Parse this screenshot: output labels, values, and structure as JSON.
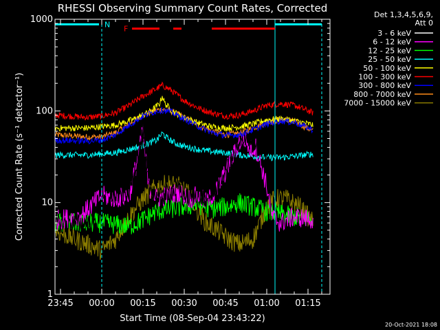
{
  "chart_data": {
    "type": "line",
    "title": "RHESSI Observing Summary Count Rates, Corrected",
    "xlabel": "Start Time (08-Sep-04 23:43:22)",
    "ylabel": "Corrected Count Rate (s⁻¹ detector⁻¹)",
    "yscale": "log",
    "ylim": [
      1,
      1000
    ],
    "xlim_minutes": [
      -17,
      83
    ],
    "x_unit": "minutes relative to 09-Sep-04 00:00",
    "x_ticks": [
      {
        "t": -15,
        "label": "23:45"
      },
      {
        "t": 0,
        "label": "00:00"
      },
      {
        "t": 15,
        "label": "00:15"
      },
      {
        "t": 30,
        "label": "00:30"
      },
      {
        "t": 45,
        "label": "00:45"
      },
      {
        "t": 60,
        "label": "01:00"
      },
      {
        "t": 75,
        "label": "01:15"
      }
    ],
    "y_ticks": [
      {
        "v": 1,
        "label": "1"
      },
      {
        "v": 10,
        "label": "10"
      },
      {
        "v": 100,
        "label": "100"
      },
      {
        "v": 1000,
        "label": "1000"
      }
    ],
    "legend_header": [
      "Det 1,3,4,5,6,9,",
      "Att 0"
    ],
    "legend_position": "top-right",
    "series": [
      {
        "name": "3 - 6 keV",
        "color": "#000000",
        "points": [
          [
            -17,
            6
          ],
          [
            -5,
            6
          ],
          [
            -1,
            6
          ],
          [
            0,
            13
          ],
          [
            5,
            12
          ],
          [
            10,
            13
          ],
          [
            13,
            30
          ],
          [
            15,
            55
          ],
          [
            17,
            15
          ],
          [
            20,
            11
          ],
          [
            25,
            13
          ],
          [
            28,
            14
          ],
          [
            32,
            11
          ],
          [
            35,
            13
          ],
          [
            38,
            10
          ],
          [
            42,
            15
          ],
          [
            46,
            25
          ],
          [
            50,
            40
          ],
          [
            52,
            55
          ],
          [
            54,
            45
          ],
          [
            57,
            42
          ],
          [
            59,
            35
          ],
          [
            61,
            25
          ],
          [
            62,
            1
          ],
          [
            77,
            1
          ]
        ]
      },
      {
        "name": "6 - 12 keV",
        "color": "#ff00ff",
        "points": [
          [
            -17,
            6.5
          ],
          [
            -8,
            7
          ],
          [
            0,
            12
          ],
          [
            5,
            11
          ],
          [
            10,
            12
          ],
          [
            13,
            30
          ],
          [
            15,
            60
          ],
          [
            17,
            15
          ],
          [
            20,
            11
          ],
          [
            24,
            12
          ],
          [
            28,
            13
          ],
          [
            32,
            11
          ],
          [
            35,
            12
          ],
          [
            38,
            10
          ],
          [
            42,
            14
          ],
          [
            46,
            25
          ],
          [
            50,
            45
          ],
          [
            52,
            50
          ],
          [
            54,
            38
          ],
          [
            56,
            40
          ],
          [
            58,
            25
          ],
          [
            60,
            15
          ],
          [
            62,
            7
          ],
          [
            65,
            6
          ],
          [
            70,
            7
          ],
          [
            77,
            6.5
          ]
        ]
      },
      {
        "name": "12 - 25 keV",
        "color": "#00ff00",
        "points": [
          [
            -17,
            6
          ],
          [
            -8,
            6
          ],
          [
            0,
            6
          ],
          [
            10,
            5.5
          ],
          [
            15,
            6.5
          ],
          [
            20,
            8
          ],
          [
            25,
            8.5
          ],
          [
            30,
            9
          ],
          [
            35,
            9.5
          ],
          [
            40,
            8.5
          ],
          [
            45,
            9
          ],
          [
            50,
            10
          ],
          [
            55,
            9
          ],
          [
            60,
            8
          ],
          [
            65,
            7.5
          ],
          [
            70,
            7
          ],
          [
            77,
            6.5
          ]
        ]
      },
      {
        "name": "25 - 50 keV",
        "color": "#00ffff",
        "points": [
          [
            -17,
            33
          ],
          [
            -5,
            33
          ],
          [
            5,
            35
          ],
          [
            10,
            38
          ],
          [
            15,
            42
          ],
          [
            20,
            48
          ],
          [
            22,
            57
          ],
          [
            24,
            50
          ],
          [
            27,
            44
          ],
          [
            30,
            41
          ],
          [
            35,
            38
          ],
          [
            40,
            36
          ],
          [
            45,
            35
          ],
          [
            50,
            33
          ],
          [
            55,
            32
          ],
          [
            60,
            31
          ],
          [
            65,
            31
          ],
          [
            70,
            32
          ],
          [
            77,
            34
          ]
        ]
      },
      {
        "name": "50 - 100 keV",
        "color": "#ffff00",
        "points": [
          [
            -17,
            65
          ],
          [
            -5,
            65
          ],
          [
            5,
            70
          ],
          [
            12,
            82
          ],
          [
            18,
            100
          ],
          [
            21,
            120
          ],
          [
            22,
            145
          ],
          [
            23,
            120
          ],
          [
            26,
            98
          ],
          [
            30,
            85
          ],
          [
            35,
            74
          ],
          [
            40,
            67
          ],
          [
            45,
            65
          ],
          [
            50,
            67
          ],
          [
            55,
            72
          ],
          [
            60,
            80
          ],
          [
            65,
            82
          ],
          [
            70,
            78
          ],
          [
            77,
            70
          ]
        ]
      },
      {
        "name": "100 - 300 keV",
        "color": "#ff0000",
        "points": [
          [
            -17,
            90
          ],
          [
            -5,
            85
          ],
          [
            0,
            88
          ],
          [
            5,
            95
          ],
          [
            10,
            115
          ],
          [
            15,
            145
          ],
          [
            20,
            175
          ],
          [
            22,
            190
          ],
          [
            25,
            170
          ],
          [
            30,
            130
          ],
          [
            35,
            108
          ],
          [
            40,
            95
          ],
          [
            45,
            88
          ],
          [
            50,
            90
          ],
          [
            55,
            100
          ],
          [
            60,
            115
          ],
          [
            65,
            120
          ],
          [
            70,
            115
          ],
          [
            77,
            95
          ]
        ]
      },
      {
        "name": "300 - 800 keV",
        "color": "#0000ff",
        "points": [
          [
            -17,
            48
          ],
          [
            -5,
            47
          ],
          [
            0,
            48
          ],
          [
            5,
            55
          ],
          [
            10,
            70
          ],
          [
            15,
            88
          ],
          [
            20,
            100
          ],
          [
            22,
            102
          ],
          [
            25,
            98
          ],
          [
            30,
            82
          ],
          [
            35,
            68
          ],
          [
            40,
            58
          ],
          [
            45,
            54
          ],
          [
            50,
            55
          ],
          [
            55,
            62
          ],
          [
            60,
            72
          ],
          [
            65,
            78
          ],
          [
            70,
            75
          ],
          [
            77,
            62
          ]
        ]
      },
      {
        "name": "800 - 7000 keV",
        "color": "#ff8c1a",
        "points": [
          [
            -17,
            55
          ],
          [
            -5,
            52
          ],
          [
            0,
            52
          ],
          [
            5,
            58
          ],
          [
            10,
            72
          ],
          [
            15,
            90
          ],
          [
            20,
            102
          ],
          [
            22,
            104
          ],
          [
            25,
            100
          ],
          [
            30,
            85
          ],
          [
            35,
            70
          ],
          [
            40,
            60
          ],
          [
            45,
            55
          ],
          [
            50,
            57
          ],
          [
            55,
            65
          ],
          [
            60,
            75
          ],
          [
            65,
            80
          ],
          [
            70,
            77
          ],
          [
            77,
            60
          ]
        ]
      },
      {
        "name": "7000 - 15000 keV",
        "color": "#8b7d00",
        "points": [
          [
            -17,
            5
          ],
          [
            -10,
            4
          ],
          [
            -5,
            3.5
          ],
          [
            0,
            3
          ],
          [
            5,
            4
          ],
          [
            10,
            7
          ],
          [
            15,
            11
          ],
          [
            20,
            15
          ],
          [
            25,
            16
          ],
          [
            28,
            15
          ],
          [
            32,
            12
          ],
          [
            35,
            8
          ],
          [
            38,
            6
          ],
          [
            42,
            5
          ],
          [
            46,
            4
          ],
          [
            50,
            3.5
          ],
          [
            55,
            4
          ],
          [
            60,
            9
          ],
          [
            63,
            11
          ],
          [
            67,
            11
          ],
          [
            72,
            9
          ],
          [
            77,
            6
          ]
        ]
      }
    ],
    "annotations": [
      {
        "type": "vline",
        "t": -17,
        "color": "#00ffff",
        "style": "solid"
      },
      {
        "type": "vline",
        "t": 0,
        "color": "#00ffff",
        "style": "dashed"
      },
      {
        "type": "vline",
        "t": 63,
        "color": "#00ffff",
        "style": "solid"
      },
      {
        "type": "vline",
        "t": 80,
        "color": "#00ffff",
        "style": "dashed"
      },
      {
        "type": "bar",
        "t0": -17,
        "t1": -1,
        "color": "#00ffff",
        "level": 880
      },
      {
        "type": "bar",
        "t0": 63,
        "t1": 80,
        "color": "#00ffff",
        "level": 880
      },
      {
        "type": "label",
        "text": "N",
        "t": 1,
        "color": "#00ffff",
        "level": 880
      },
      {
        "type": "label",
        "text": "F",
        "t": 8,
        "color": "#ff0000",
        "level": 790
      },
      {
        "type": "bar",
        "t0": 11,
        "t1": 21,
        "color": "#ff0000",
        "level": 790
      },
      {
        "type": "bar",
        "t0": 26,
        "t1": 29,
        "color": "#ff0000",
        "level": 790
      },
      {
        "type": "bar",
        "t0": 40,
        "t1": 63,
        "color": "#ff0000",
        "level": 790
      }
    ]
  },
  "footer_stamp": "20-Oct-2021 18:08"
}
